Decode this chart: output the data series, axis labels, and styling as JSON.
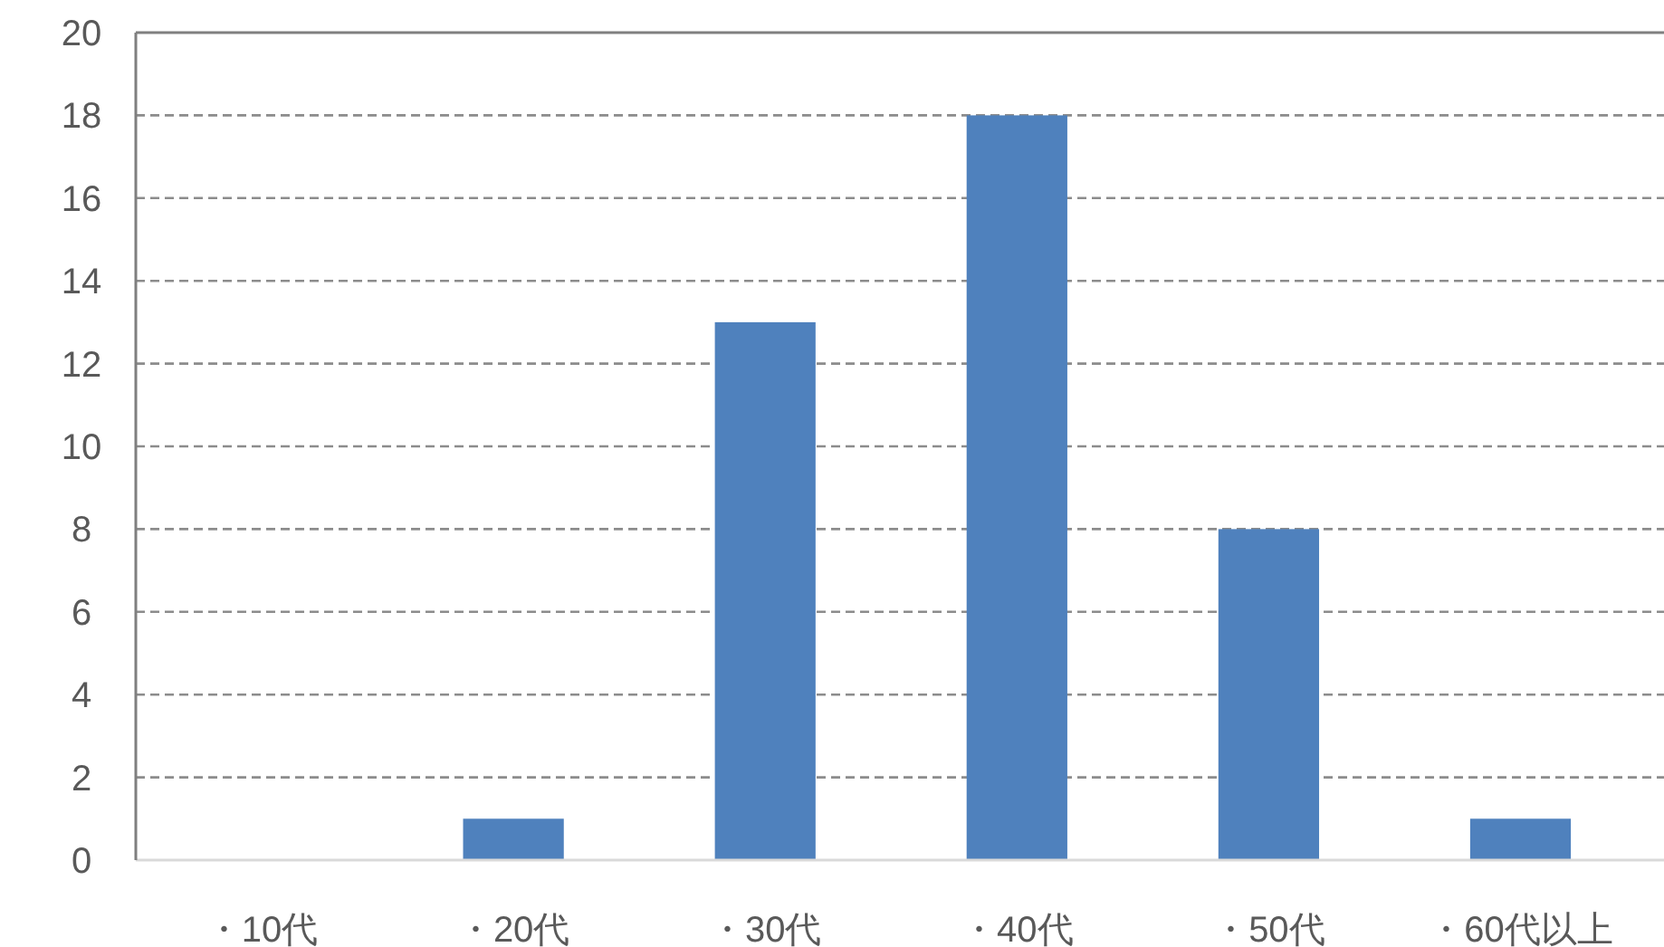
{
  "chart_data": {
    "type": "bar",
    "categories": [
      "・10代",
      "・20代",
      "・30代",
      "・40代",
      "・50代",
      "・60代以上"
    ],
    "values": [
      0,
      1,
      13,
      18,
      8,
      1
    ],
    "color": "#4f81bd",
    "ylim": [
      0,
      20
    ],
    "yticks": [
      0,
      2,
      4,
      6,
      8,
      10,
      12,
      14,
      16,
      18,
      20
    ],
    "grid": "y"
  }
}
